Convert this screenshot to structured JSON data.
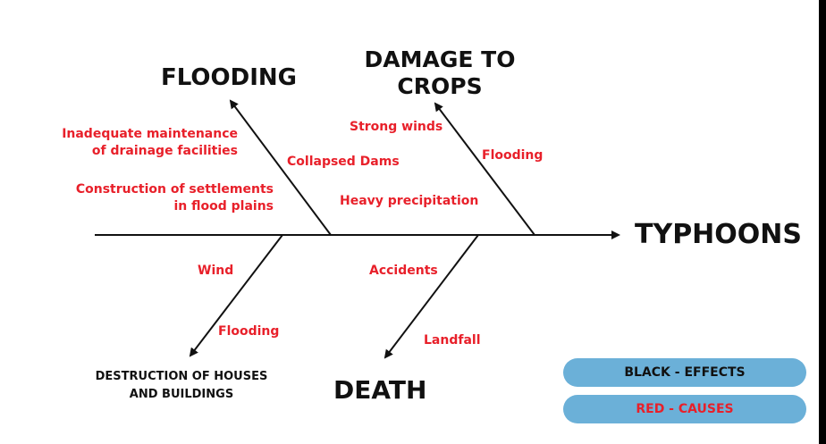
{
  "head": "TYPHOONS",
  "effects": {
    "flooding": "FLOODING",
    "crops": [
      "DAMAGE TO",
      "CROPS"
    ],
    "houses": [
      "DESTRUCTION OF HOUSES",
      "AND BUILDINGS"
    ],
    "death": "DEATH"
  },
  "causes": {
    "drainage": [
      "Inadequate maintenance",
      "of drainage facilities"
    ],
    "settlements": [
      "Construction of settlements",
      "in flood plains"
    ],
    "dams": "Collapsed Dams",
    "strong_winds": "Strong winds",
    "crop_flooding": "Flooding",
    "precipitation": "Heavy precipitation",
    "wind": "Wind",
    "house_flooding": "Flooding",
    "accidents": "Accidents",
    "landfall": "Landfall"
  },
  "legend": {
    "effects_label": "BLACK - EFFECTS",
    "causes_label": "RED - CAUSES",
    "effects_color": "#111111",
    "causes_color": "#e8202a",
    "pill_color": "#6bb0d8"
  }
}
